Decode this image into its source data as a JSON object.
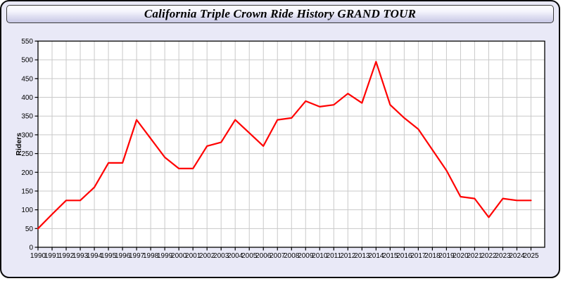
{
  "window": {
    "background_color": "#e9e9f7",
    "border_color": "#0a0a0a"
  },
  "title_bar": {
    "title": "California Triple Crown Ride History GRAND TOUR",
    "gradient_top": "#ffffff",
    "gradient_bottom": "#c7c7e4"
  },
  "chart_data": {
    "type": "line",
    "title": "California Triple Crown Ride History GRAND TOUR",
    "xlabel": "",
    "ylabel": "Riders",
    "ylim": [
      0,
      550
    ],
    "ytick_step": 50,
    "grid": true,
    "legend_position": "none",
    "plot_bg_color": "#ffffff",
    "grid_color": "#c9c9c9",
    "axis_color": "#000000",
    "x": [
      1990,
      1991,
      1992,
      1993,
      1994,
      1995,
      1996,
      1997,
      1998,
      1999,
      2000,
      2001,
      2002,
      2003,
      2004,
      2005,
      2006,
      2007,
      2008,
      2009,
      2010,
      2011,
      2012,
      2013,
      2014,
      2015,
      2016,
      2017,
      2018,
      2019,
      2020,
      2021,
      2022,
      2023,
      2024,
      2025
    ],
    "series": [
      {
        "name": "Riders",
        "color": "#ff0000",
        "values": [
          50,
          88,
          125,
          125,
          160,
          225,
          225,
          340,
          290,
          240,
          210,
          210,
          270,
          280,
          340,
          305,
          270,
          340,
          345,
          390,
          375,
          380,
          410,
          385,
          495,
          380,
          345,
          315,
          260,
          205,
          135,
          130,
          80,
          130,
          125,
          125
        ]
      }
    ]
  }
}
